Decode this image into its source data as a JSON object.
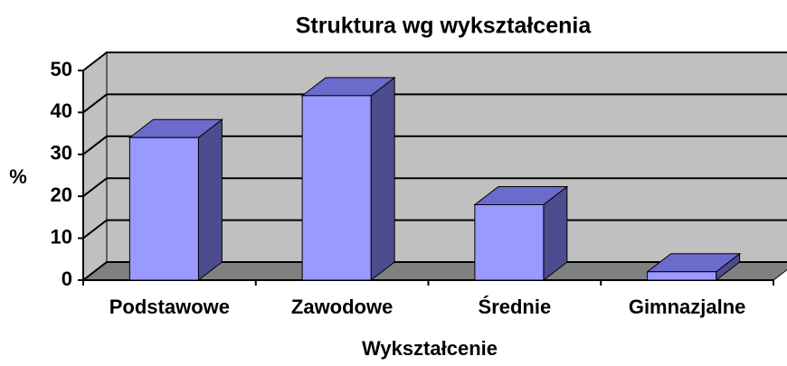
{
  "chart_data": {
    "type": "bar3d",
    "title": "Struktura wg wykształcenia",
    "x_label": "Wykształcenie",
    "y_label": "%",
    "categories": [
      "Podstawowe",
      "Zawodowe",
      "Średnie",
      "Gimnazjalne"
    ],
    "values": [
      34,
      44,
      18,
      2
    ],
    "color": "#9999ff",
    "ylim": [
      0,
      50
    ],
    "yticks": [
      0,
      10,
      20,
      30,
      40,
      50
    ],
    "grid": true
  }
}
